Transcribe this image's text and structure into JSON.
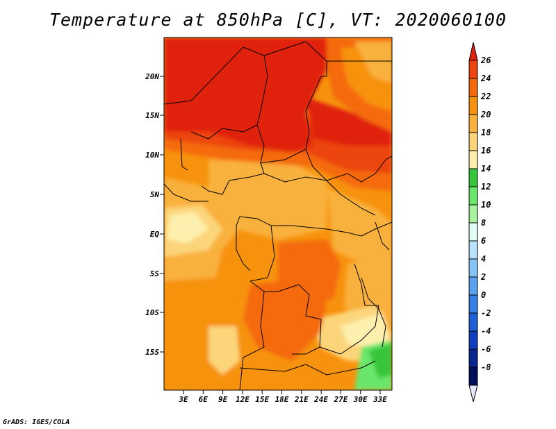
{
  "title": "Temperature at 850hPa [C], VT: 2020060100",
  "credit": "GrADS: IGES/COLA",
  "map": {
    "lat_ticks": [
      "20N",
      "15N",
      "10N",
      "5N",
      "EQ",
      "5S",
      "10S",
      "15S"
    ],
    "lon_ticks": [
      "3E",
      "6E",
      "9E",
      "12E",
      "15E",
      "18E",
      "21E",
      "24E",
      "27E",
      "30E",
      "33E"
    ]
  },
  "colorbar": {
    "labels": [
      "26",
      "24",
      "22",
      "20",
      "18",
      "16",
      "14",
      "12",
      "10",
      "8",
      "6",
      "4",
      "2",
      "0",
      "-2",
      "-4",
      "-6",
      "-8"
    ],
    "colors": [
      "#e0220e",
      "#ec4510",
      "#f46b0f",
      "#f7920e",
      "#f9b13d",
      "#fcd57a",
      "#fdf0ae",
      "#37c53b",
      "#6ae66a",
      "#a9f3a0",
      "#e2fbf5",
      "#b7e4fb",
      "#87c4f6",
      "#5aa2ef",
      "#357fe6",
      "#1d5fd7",
      "#0f3fbf",
      "#07288f",
      "#02105a",
      "#e9e9ff"
    ]
  }
}
